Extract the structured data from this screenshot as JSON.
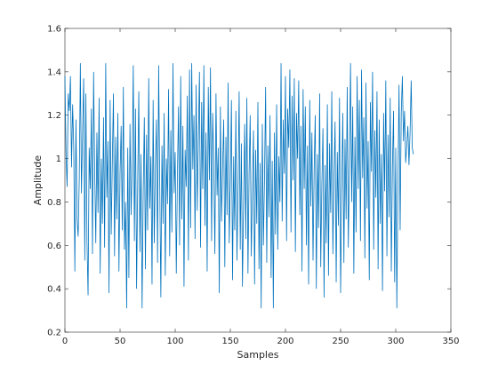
{
  "chart_data": {
    "type": "line",
    "title": "",
    "xlabel": "Samples",
    "ylabel": "Amplitude",
    "xlim": [
      0,
      350
    ],
    "ylim": [
      0.2,
      1.6
    ],
    "xticks": [
      0,
      50,
      100,
      150,
      200,
      250,
      300,
      350
    ],
    "yticks": [
      0.2,
      0.4,
      0.6,
      0.8,
      1,
      1.2,
      1.4,
      1.6
    ],
    "xtick_labels": [
      "0",
      "50",
      "100",
      "150",
      "200",
      "250",
      "300",
      "350"
    ],
    "ytick_labels": [
      "0.2",
      "0.4",
      "0.6",
      "0.8",
      "1",
      "1.2",
      "1.4",
      "1.6"
    ],
    "grid": false,
    "series_color": "#0072BD",
    "series": [
      {
        "values": [
          1.38,
          1.02,
          0.87,
          1.3,
          1.22,
          1.38,
          0.96,
          1.25,
          1.05,
          0.48,
          1.18,
          0.72,
          0.64,
          0.9,
          1.44,
          0.84,
          1.12,
          1.37,
          0.53,
          1.3,
          0.62,
          0.37,
          1.05,
          0.86,
          1.23,
          0.56,
          1.4,
          0.94,
          0.61,
          1.12,
          0.75,
          1.28,
          0.47,
          1.0,
          0.7,
          1.19,
          0.59,
          1.44,
          0.82,
          1.08,
          0.38,
          1.27,
          0.65,
          0.99,
          1.3,
          0.55,
          1.1,
          0.72,
          1.21,
          0.48,
          0.93,
          1.15,
          0.67,
          1.33,
          0.58,
          0.8,
          0.31,
          1.05,
          0.45,
          1.16,
          0.74,
          0.97,
          1.43,
          0.62,
          1.23,
          0.4,
          0.89,
          1.31,
          0.57,
          1.02,
          0.31,
          0.84,
          1.19,
          0.49,
          1.11,
          0.67,
          1.37,
          0.77,
          1.01,
          0.42,
          1.27,
          0.61,
          0.95,
          1.18,
          0.52,
          1.43,
          0.88,
          0.36,
          1.06,
          0.7,
          1.21,
          0.46,
          1.0,
          0.79,
          1.32,
          0.55,
          1.13,
          0.66,
          1.44,
          0.84,
          1.03,
          0.47,
          0.92,
          1.24,
          0.6,
          1.38,
          0.72,
          1.15,
          0.41,
          1.04,
          0.87,
          1.29,
          0.53,
          1.41,
          0.68,
          1.44,
          0.95,
          1.2,
          0.63,
          1.34,
          0.76,
          1.09,
          1.4,
          0.59,
          1.26,
          0.86,
          1.43,
          0.69,
          1.12,
          0.48,
          1.33,
          0.9,
          1.42,
          0.62,
          1.21,
          0.97,
          0.56,
          1.3,
          0.83,
          1.05,
          0.38,
          1.24,
          0.71,
          0.96,
          1.18,
          0.5,
          1.1,
          0.74,
          1.35,
          0.61,
          0.89,
          1.27,
          0.44,
          1.01,
          0.67,
          1.22,
          0.53,
          0.86,
          1.31,
          0.58,
          1.07,
          0.41,
          0.79,
          1.16,
          0.63,
          1.28,
          0.47,
          0.93,
          1.2,
          0.55,
          0.85,
          1.13,
          0.42,
          1.04,
          0.7,
          1.26,
          0.49,
          0.98,
          0.31,
          1.16,
          0.6,
          0.91,
          1.33,
          0.52,
          1.06,
          0.73,
          1.2,
          0.45,
          0.99,
          0.31,
          1.12,
          0.65,
          1.25,
          0.58,
          1.01,
          0.8,
          1.44,
          0.71,
          1.18,
          0.93,
          1.38,
          0.62,
          1.23,
          1.05,
          1.41,
          0.66,
          1.29,
          0.9,
          1.37,
          0.57,
          1.21,
          1.0,
          1.36,
          0.74,
          1.15,
          0.48,
          1.32,
          0.86,
          1.24,
          0.6,
          1.06,
          0.42,
          1.27,
          0.78,
          1.12,
          0.53,
          0.95,
          1.2,
          0.4,
          1.02,
          0.68,
          1.3,
          0.5,
          0.88,
          1.14,
          0.36,
          0.97,
          0.61,
          1.25,
          0.46,
          1.07,
          0.75,
          1.31,
          0.56,
          0.92,
          1.17,
          0.43,
          1.03,
          0.69,
          1.28,
          0.38,
          0.84,
          1.21,
          0.52,
          1.09,
          0.72,
          1.33,
          0.59,
          0.97,
          1.44,
          0.8,
          1.24,
          0.47,
          1.1,
          0.66,
          1.38,
          0.86,
          1.27,
          0.62,
          1.41,
          0.91,
          1.19,
          0.54,
          1.35,
          0.77,
          1.08,
          0.44,
          1.26,
          0.94,
          1.4,
          0.58,
          1.13,
          0.82,
          1.31,
          0.49,
          1.18,
          0.7,
          1.02,
          0.39,
          1.21,
          0.85,
          1.36,
          0.55,
          1.11,
          0.73,
          1.28,
          0.48,
          0.96,
          1.22,
          0.43,
          1.05,
          0.31,
          0.89,
          1.34,
          0.67,
          1.21,
          1.38,
          1.08,
          1.22,
          0.98,
          1.06,
          1.15,
          0.97,
          1.12,
          1.36,
          1.05,
          1.02
        ]
      }
    ]
  }
}
